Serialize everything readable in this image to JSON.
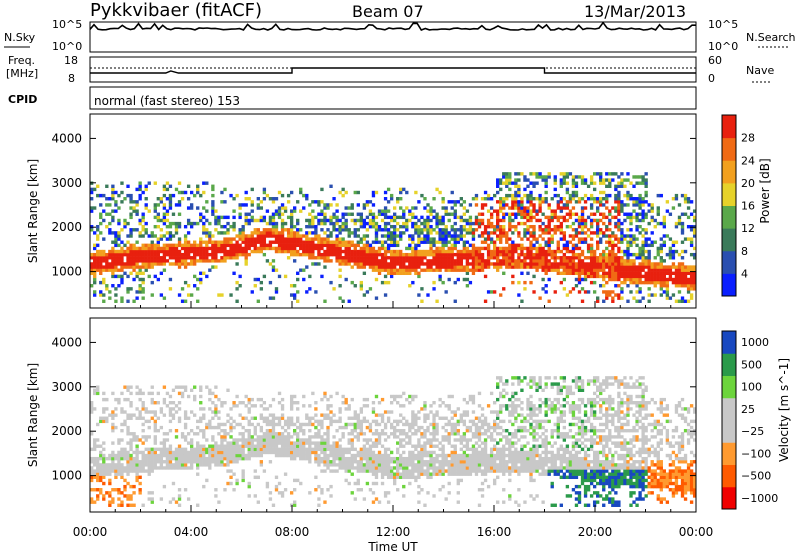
{
  "header": {
    "station": "Pykkvibaer (fitACF)",
    "beam": "Beam 07",
    "date": "13/Mar/2013"
  },
  "nsky_panel": {
    "left_label": "N.Sky",
    "left_ticks": [
      "10^5",
      "10^0"
    ],
    "right_ticks": [
      "10^5",
      "10^0"
    ],
    "right_label": "N.Search"
  },
  "freq_panel": {
    "left_label_1": "Freq.",
    "left_label_2": "[MHz]",
    "left_ticks": [
      "18",
      "8"
    ],
    "right_ticks": [
      "60",
      "0"
    ],
    "right_label": "Nave"
  },
  "cpid_panel": {
    "left_label": "CPID",
    "mode": "normal (fast stereo) 153"
  },
  "colors": {
    "power": [
      "#0a1fff",
      "#2a4fb0",
      "#3a7a5a",
      "#5aa84a",
      "#e6d22a",
      "#f2a01e",
      "#f06a14",
      "#e8200e"
    ],
    "velocity": [
      "#f00000",
      "#ff5a00",
      "#ff9a30",
      "#c8c8c8",
      "#c8c8c8",
      "#6cd43c",
      "#2a9a4a",
      "#1848c0"
    ]
  },
  "chart_data": [
    {
      "type": "heatmap",
      "title": "Power",
      "ylabel": "Slant Range [km]",
      "ylim": [
        180,
        4550
      ],
      "yticks": [
        1000,
        2000,
        3000,
        4000
      ],
      "xlim": [
        0,
        24
      ],
      "colorbar_label": "Power [dB]",
      "colorbar_ticks": [
        "4",
        "8",
        "12",
        "16",
        "20",
        "24",
        "28"
      ]
    },
    {
      "type": "heatmap",
      "title": "Velocity",
      "ylabel": "Slant Range [km]",
      "ylim": [
        180,
        4550
      ],
      "yticks": [
        1000,
        2000,
        3000,
        4000
      ],
      "xlim": [
        0,
        24
      ],
      "xticks": [
        "00:00",
        "04:00",
        "08:00",
        "12:00",
        "16:00",
        "20:00",
        "00:00"
      ],
      "xlabel": "Time UT",
      "colorbar_label": "Velocity [m s^-1]",
      "colorbar_ticks": [
        "1000",
        "500",
        "100",
        "25",
        "−25",
        "−100",
        "−500",
        "−1000"
      ]
    }
  ]
}
